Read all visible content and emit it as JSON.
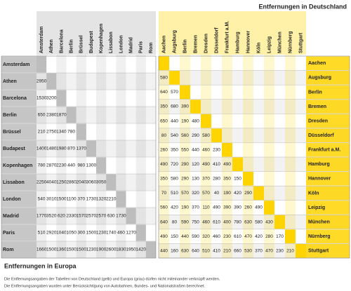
{
  "europe": {
    "title": "Entfernungen in Europa",
    "cities": [
      "Amsterdam",
      "Athen",
      "Barcelona",
      "Berlin",
      "Brüssel",
      "Budapest",
      "Kopenhagen",
      "Lissabon",
      "London",
      "Madrid",
      "Paris",
      "Rom"
    ],
    "rows": [
      [],
      [
        2950
      ],
      [
        1530,
        3200
      ],
      [
        650,
        2380,
        1870
      ],
      [
        210,
        2750,
        1340,
        780
      ],
      [
        1400,
        1480,
        1980,
        870,
        1370
      ],
      [
        780,
        2870,
        2230,
        440,
        980,
        1300
      ],
      [
        2250,
        4040,
        1250,
        2860,
        2040,
        3060,
        3050
      ],
      [
        540,
        3010,
        1500,
        1100,
        370,
        1730,
        1320,
        2210
      ],
      [
        1770,
        3520,
        620,
        2330,
        1570,
        2570,
        2570,
        630,
        1730
      ],
      [
        510,
        2920,
        1040,
        1050,
        300,
        1500,
        1230,
        1740,
        460,
        1270
      ],
      [
        1660,
        1500,
        1360,
        1500,
        1500,
        1230,
        1900,
        2600,
        1830,
        1950,
        1420
      ]
    ]
  },
  "germany": {
    "title": "Entfernungen in Deutschland",
    "cities": [
      "Aachen",
      "Augsburg",
      "Berlin",
      "Bremen",
      "Dresden",
      "Düsseldorf",
      "Frankfurt a.M.",
      "Hamburg",
      "Hannover",
      "Köln",
      "Leipzig",
      "München",
      "Nürnberg",
      "Stuttgart"
    ],
    "rows": [
      [],
      [
        580
      ],
      [
        640,
        570
      ],
      [
        350,
        680,
        390
      ],
      [
        650,
        440,
        190,
        480
      ],
      [
        80,
        540,
        560,
        290,
        580
      ],
      [
        260,
        350,
        550,
        440,
        460,
        230
      ],
      [
        490,
        720,
        290,
        120,
        490,
        410,
        490
      ],
      [
        350,
        580,
        290,
        130,
        370,
        280,
        350,
        150
      ],
      [
        70,
        510,
        570,
        320,
        570,
        40,
        190,
        420,
        290
      ],
      [
        560,
        420,
        190,
        370,
        110,
        490,
        390,
        390,
        260,
        490
      ],
      [
        640,
        80,
        590,
        750,
        460,
        610,
        400,
        780,
        630,
        580,
        430
      ],
      [
        490,
        150,
        440,
        590,
        320,
        460,
        230,
        610,
        470,
        420,
        280,
        170
      ],
      [
        440,
        160,
        630,
        640,
        510,
        410,
        210,
        660,
        530,
        370,
        470,
        230,
        210
      ]
    ]
  },
  "notes": [
    "Die Entfernungsangaben der Tabellen von Deutschland (gelb) und Europa (grau) dürfen nicht miteinander verknüpft werden.",
    "Die Entfernungsangaben wurden unter Berücksichtigung von Autobahnen, Bundes- und Nationalstraßen berechnet."
  ]
}
